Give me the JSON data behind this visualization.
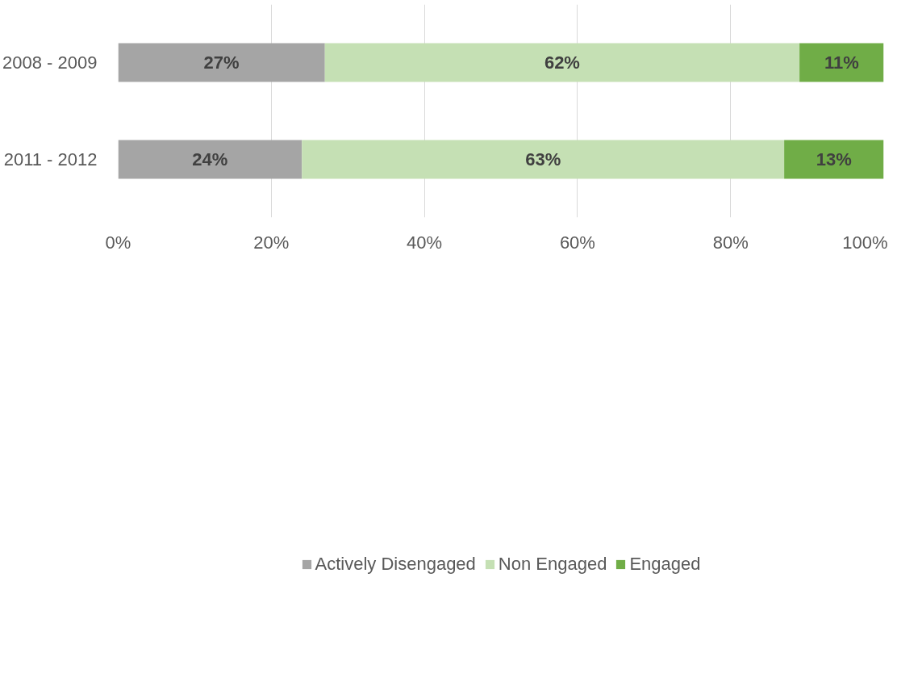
{
  "chart_data": {
    "type": "bar",
    "orientation": "horizontal",
    "stacked": true,
    "categories": [
      "2008 - 2009",
      "2011 - 2012"
    ],
    "series": [
      {
        "name": "Actively Disengaged",
        "color": "#a5a5a5",
        "values": [
          27,
          24
        ],
        "value_labels": [
          "27%",
          "24%"
        ]
      },
      {
        "name": "Non Engaged",
        "color": "#c5e0b4",
        "values": [
          62,
          63
        ],
        "value_labels": [
          "62%",
          "63%"
        ]
      },
      {
        "name": "Engaged",
        "color": "#70ad47",
        "values": [
          11,
          13
        ],
        "value_labels": [
          "11%",
          "13%"
        ]
      }
    ],
    "xlim": [
      0,
      100
    ],
    "xticks": [
      {
        "value": 0,
        "label": "0%"
      },
      {
        "value": 20,
        "label": "20%"
      },
      {
        "value": 40,
        "label": "40%"
      },
      {
        "value": 60,
        "label": "60%"
      },
      {
        "value": 80,
        "label": "80%"
      },
      {
        "value": 100,
        "label": "100%"
      }
    ],
    "grid": "x",
    "legend": "bottom"
  }
}
